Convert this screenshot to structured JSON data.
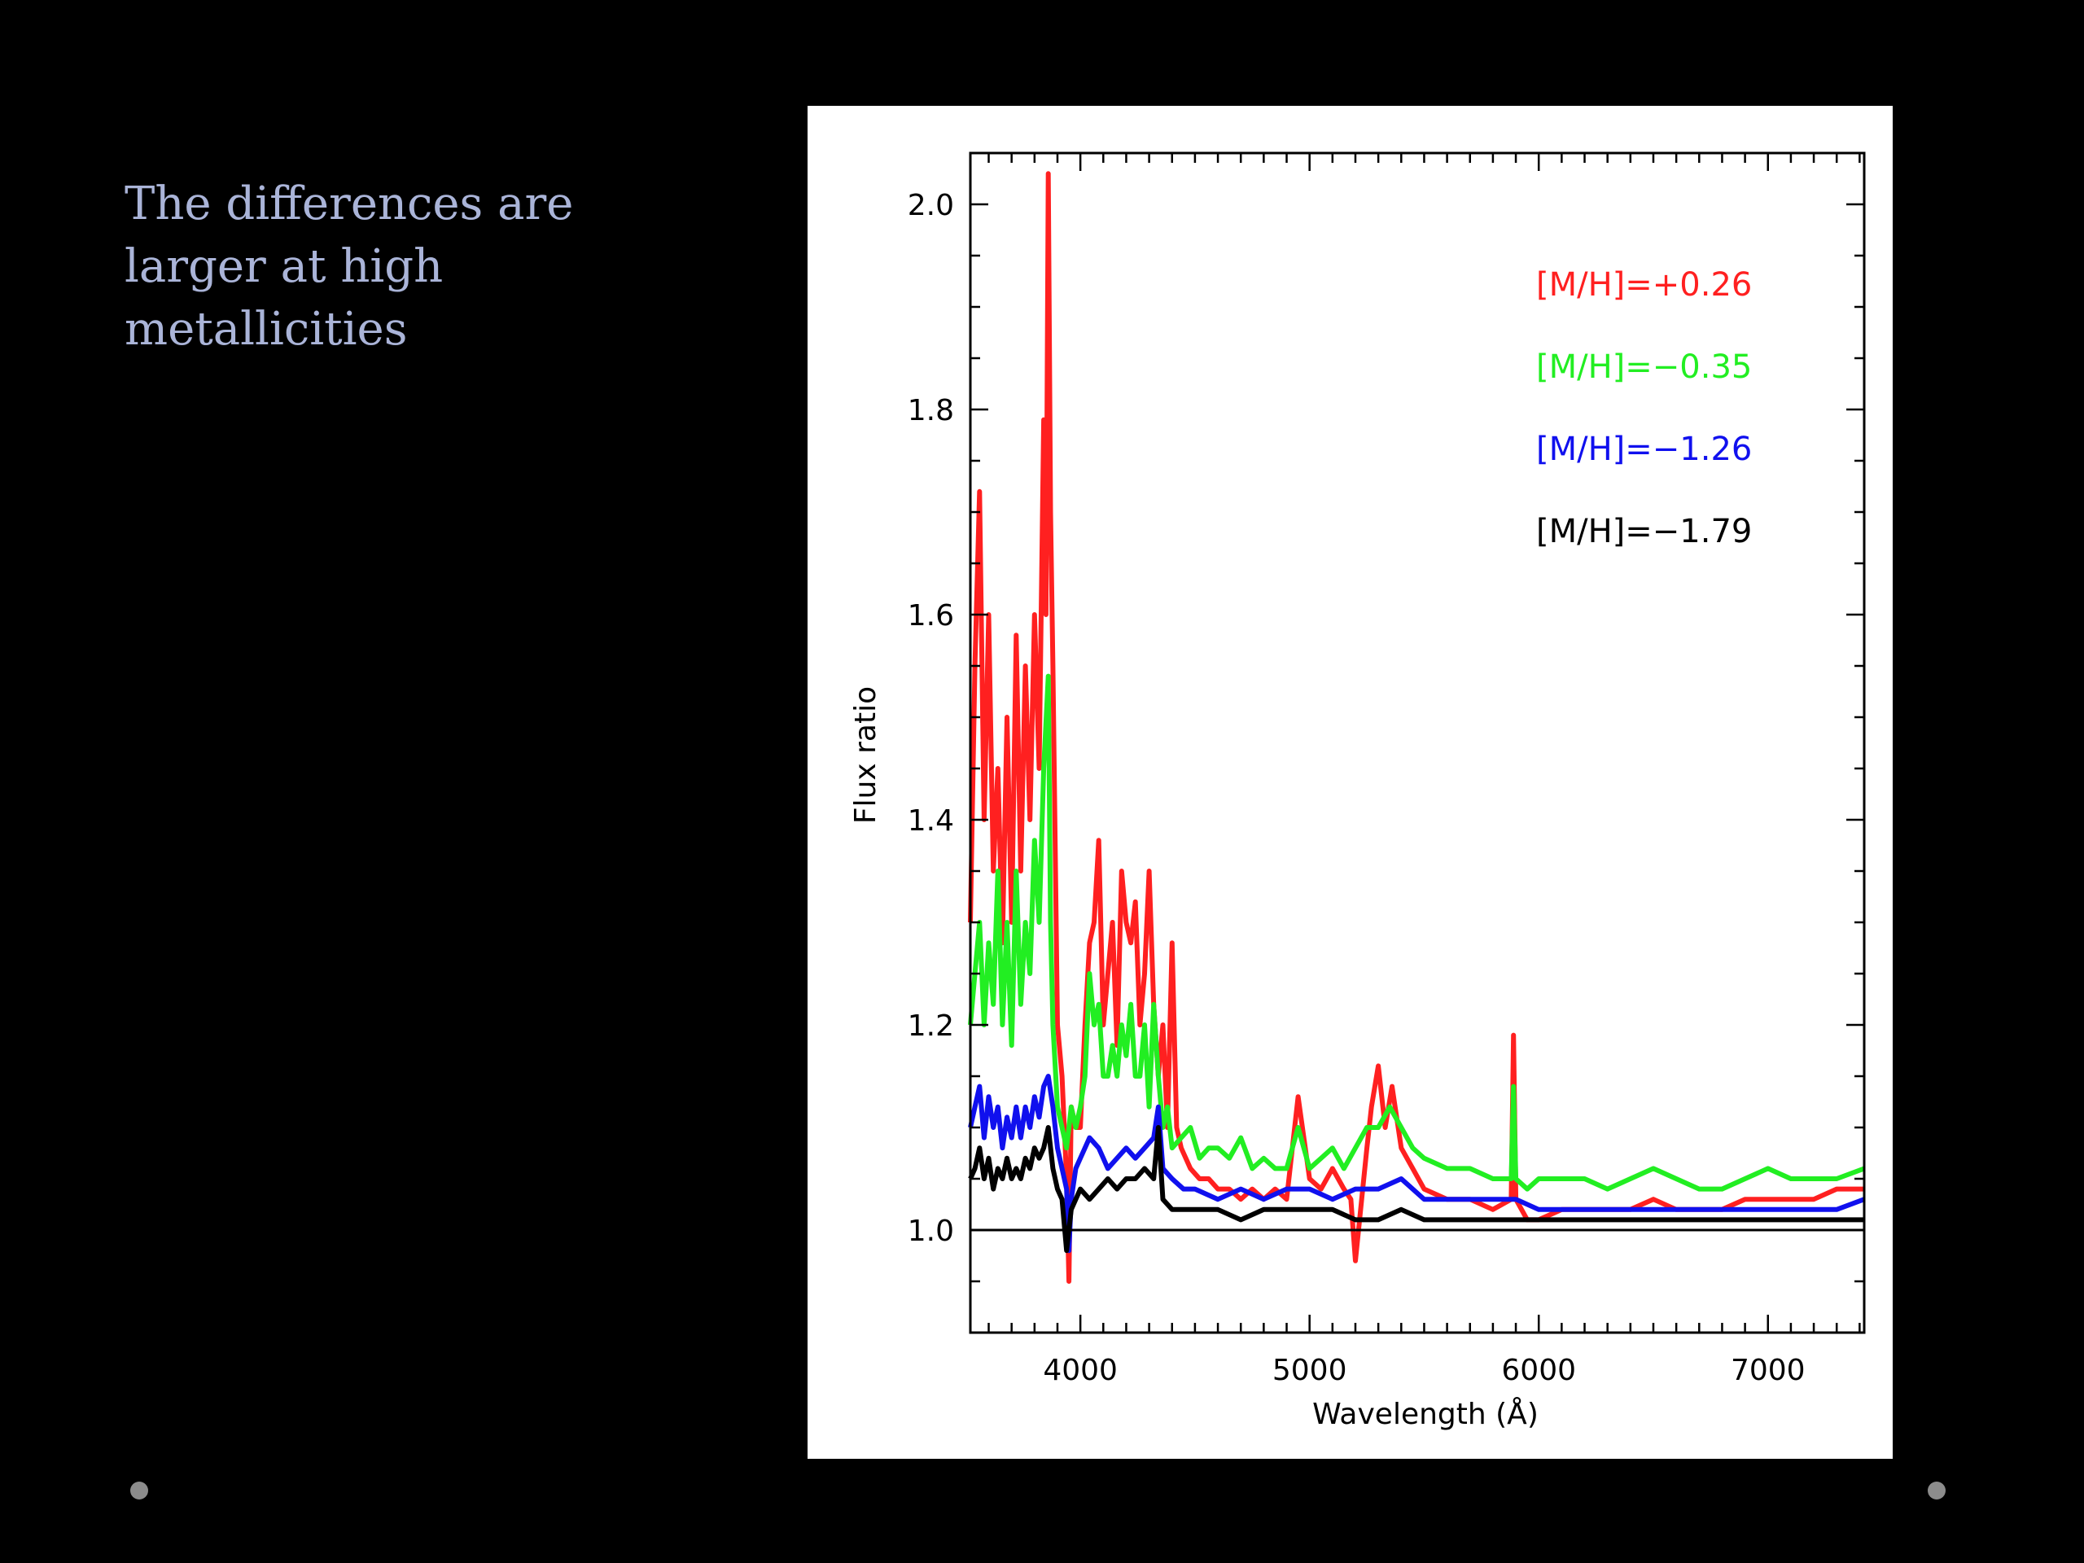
{
  "slide": {
    "text_lines": [
      "The differences are",
      "larger at high",
      "metallicities"
    ]
  },
  "chart_data": {
    "type": "line",
    "title": "",
    "xlabel": "Wavelength (Å)",
    "ylabel": "Flux ratio",
    "xlim": [
      3520,
      7420
    ],
    "ylim": [
      0.9,
      2.05
    ],
    "x_ticks": [
      4000,
      5000,
      6000,
      7000
    ],
    "y_ticks": [
      1.0,
      1.2,
      1.4,
      1.6,
      1.8,
      2.0
    ],
    "x_tick_labels": [
      "4000",
      "5000",
      "6000",
      "7000"
    ],
    "y_tick_labels": [
      "1.0",
      "1.2",
      "1.4",
      "1.6",
      "1.8",
      "2.0"
    ],
    "reference_line": {
      "y": 1.0,
      "color": "#000000"
    },
    "legend_position": "top-right",
    "series": [
      {
        "name": "[M/H]=+0.26",
        "color": "#ff2020",
        "x": [
          3520,
          3540,
          3560,
          3580,
          3600,
          3620,
          3640,
          3660,
          3680,
          3700,
          3720,
          3740,
          3760,
          3780,
          3800,
          3820,
          3840,
          3850,
          3860,
          3870,
          3880,
          3900,
          3920,
          3940,
          3950,
          3960,
          3980,
          4000,
          4020,
          4040,
          4060,
          4080,
          4100,
          4120,
          4140,
          4160,
          4180,
          4200,
          4220,
          4240,
          4260,
          4280,
          4300,
          4320,
          4340,
          4360,
          4380,
          4400,
          4420,
          4440,
          4480,
          4520,
          4560,
          4600,
          4650,
          4700,
          4750,
          4800,
          4850,
          4900,
          4950,
          5000,
          5050,
          5100,
          5150,
          5180,
          5200,
          5250,
          5270,
          5300,
          5330,
          5360,
          5400,
          5450,
          5500,
          5600,
          5700,
          5800,
          5880,
          5890,
          5900,
          5950,
          6000,
          6100,
          6200,
          6300,
          6400,
          6500,
          6600,
          6700,
          6800,
          6900,
          7000,
          7100,
          7200,
          7300,
          7420
        ],
        "y": [
          1.3,
          1.55,
          1.72,
          1.4,
          1.6,
          1.35,
          1.45,
          1.28,
          1.5,
          1.3,
          1.58,
          1.35,
          1.55,
          1.4,
          1.6,
          1.45,
          1.79,
          1.6,
          2.03,
          1.7,
          1.55,
          1.2,
          1.15,
          1.05,
          0.95,
          1.12,
          1.1,
          1.1,
          1.2,
          1.28,
          1.3,
          1.38,
          1.2,
          1.25,
          1.3,
          1.18,
          1.35,
          1.3,
          1.28,
          1.32,
          1.2,
          1.25,
          1.35,
          1.22,
          1.15,
          1.2,
          1.1,
          1.28,
          1.1,
          1.08,
          1.06,
          1.05,
          1.05,
          1.04,
          1.04,
          1.03,
          1.04,
          1.03,
          1.04,
          1.03,
          1.13,
          1.05,
          1.04,
          1.06,
          1.04,
          1.03,
          0.97,
          1.08,
          1.12,
          1.16,
          1.1,
          1.14,
          1.08,
          1.06,
          1.04,
          1.03,
          1.03,
          1.02,
          1.03,
          1.19,
          1.03,
          1.01,
          1.01,
          1.02,
          1.02,
          1.02,
          1.02,
          1.03,
          1.02,
          1.02,
          1.02,
          1.03,
          1.03,
          1.03,
          1.03,
          1.04,
          1.04
        ]
      },
      {
        "name": "[M/H]=-0.35",
        "color": "#22ee22",
        "x": [
          3520,
          3540,
          3560,
          3580,
          3600,
          3620,
          3640,
          3660,
          3680,
          3700,
          3720,
          3740,
          3760,
          3780,
          3800,
          3820,
          3840,
          3860,
          3870,
          3880,
          3900,
          3920,
          3940,
          3960,
          3980,
          4000,
          4020,
          4040,
          4060,
          4080,
          4100,
          4120,
          4140,
          4160,
          4180,
          4200,
          4220,
          4240,
          4260,
          4280,
          4300,
          4320,
          4340,
          4360,
          4380,
          4400,
          4440,
          4480,
          4520,
          4560,
          4600,
          4650,
          4700,
          4750,
          4800,
          4850,
          4900,
          4950,
          5000,
          5050,
          5100,
          5150,
          5200,
          5250,
          5300,
          5350,
          5400,
          5450,
          5500,
          5600,
          5700,
          5800,
          5880,
          5890,
          5900,
          5950,
          6000,
          6100,
          6200,
          6300,
          6400,
          6500,
          6600,
          6700,
          6800,
          6900,
          7000,
          7100,
          7200,
          7300,
          7420
        ],
        "y": [
          1.2,
          1.25,
          1.3,
          1.2,
          1.28,
          1.22,
          1.35,
          1.2,
          1.3,
          1.18,
          1.35,
          1.22,
          1.3,
          1.25,
          1.38,
          1.3,
          1.45,
          1.54,
          1.3,
          1.2,
          1.12,
          1.1,
          1.08,
          1.12,
          1.1,
          1.12,
          1.15,
          1.25,
          1.2,
          1.22,
          1.15,
          1.15,
          1.18,
          1.15,
          1.2,
          1.17,
          1.22,
          1.15,
          1.15,
          1.2,
          1.12,
          1.22,
          1.15,
          1.1,
          1.12,
          1.08,
          1.09,
          1.1,
          1.07,
          1.08,
          1.08,
          1.07,
          1.09,
          1.06,
          1.07,
          1.06,
          1.06,
          1.1,
          1.06,
          1.07,
          1.08,
          1.06,
          1.08,
          1.1,
          1.1,
          1.12,
          1.1,
          1.08,
          1.07,
          1.06,
          1.06,
          1.05,
          1.05,
          1.14,
          1.05,
          1.04,
          1.05,
          1.05,
          1.05,
          1.04,
          1.05,
          1.06,
          1.05,
          1.04,
          1.04,
          1.05,
          1.06,
          1.05,
          1.05,
          1.05,
          1.06
        ]
      },
      {
        "name": "[M/H]=-1.26",
        "color": "#1010ee",
        "x": [
          3520,
          3540,
          3560,
          3580,
          3600,
          3620,
          3640,
          3660,
          3680,
          3700,
          3720,
          3740,
          3760,
          3780,
          3800,
          3820,
          3840,
          3860,
          3880,
          3900,
          3920,
          3940,
          3950,
          3960,
          3980,
          4000,
          4040,
          4080,
          4120,
          4160,
          4200,
          4240,
          4280,
          4320,
          4340,
          4360,
          4400,
          4450,
          4500,
          4600,
          4700,
          4800,
          4900,
          5000,
          5100,
          5200,
          5300,
          5400,
          5500,
          5600,
          5700,
          5800,
          5900,
          6000,
          6100,
          6200,
          6300,
          6400,
          6500,
          6600,
          6700,
          6800,
          6900,
          7000,
          7100,
          7200,
          7300,
          7420
        ],
        "y": [
          1.1,
          1.12,
          1.14,
          1.09,
          1.13,
          1.1,
          1.12,
          1.08,
          1.11,
          1.09,
          1.12,
          1.09,
          1.12,
          1.1,
          1.13,
          1.11,
          1.14,
          1.15,
          1.12,
          1.08,
          1.06,
          1.04,
          0.98,
          1.03,
          1.06,
          1.07,
          1.09,
          1.08,
          1.06,
          1.07,
          1.08,
          1.07,
          1.08,
          1.09,
          1.12,
          1.06,
          1.05,
          1.04,
          1.04,
          1.03,
          1.04,
          1.03,
          1.04,
          1.04,
          1.03,
          1.04,
          1.04,
          1.05,
          1.03,
          1.03,
          1.03,
          1.03,
          1.03,
          1.02,
          1.02,
          1.02,
          1.02,
          1.02,
          1.02,
          1.02,
          1.02,
          1.02,
          1.02,
          1.02,
          1.02,
          1.02,
          1.02,
          1.03
        ]
      },
      {
        "name": "[M/H]=-1.79",
        "color": "#000000",
        "x": [
          3520,
          3540,
          3560,
          3580,
          3600,
          3620,
          3640,
          3660,
          3680,
          3700,
          3720,
          3740,
          3760,
          3780,
          3800,
          3820,
          3840,
          3860,
          3880,
          3900,
          3920,
          3940,
          3960,
          3980,
          4000,
          4040,
          4080,
          4120,
          4160,
          4200,
          4240,
          4280,
          4320,
          4340,
          4360,
          4400,
          4450,
          4500,
          4600,
          4700,
          4800,
          4900,
          5000,
          5100,
          5200,
          5300,
          5400,
          5500,
          5600,
          5700,
          5800,
          5900,
          6000,
          6200,
          6400,
          6600,
          6800,
          7000,
          7200,
          7420
        ],
        "y": [
          1.05,
          1.06,
          1.08,
          1.05,
          1.07,
          1.04,
          1.06,
          1.05,
          1.07,
          1.05,
          1.06,
          1.05,
          1.07,
          1.06,
          1.08,
          1.07,
          1.08,
          1.1,
          1.06,
          1.04,
          1.03,
          0.98,
          1.02,
          1.03,
          1.04,
          1.03,
          1.04,
          1.05,
          1.04,
          1.05,
          1.05,
          1.06,
          1.05,
          1.1,
          1.03,
          1.02,
          1.02,
          1.02,
          1.02,
          1.01,
          1.02,
          1.02,
          1.02,
          1.02,
          1.01,
          1.01,
          1.02,
          1.01,
          1.01,
          1.01,
          1.01,
          1.01,
          1.01,
          1.01,
          1.01,
          1.01,
          1.01,
          1.01,
          1.01,
          1.01
        ]
      }
    ],
    "legend": [
      {
        "label": "[M/H]=+0.26",
        "color": "#ff2020"
      },
      {
        "label": "[M/H]=−0.35",
        "color": "#22ee22"
      },
      {
        "label": "[M/H]=−1.26",
        "color": "#1010ee"
      },
      {
        "label": "[M/H]=−1.79",
        "color": "#000000"
      }
    ]
  }
}
